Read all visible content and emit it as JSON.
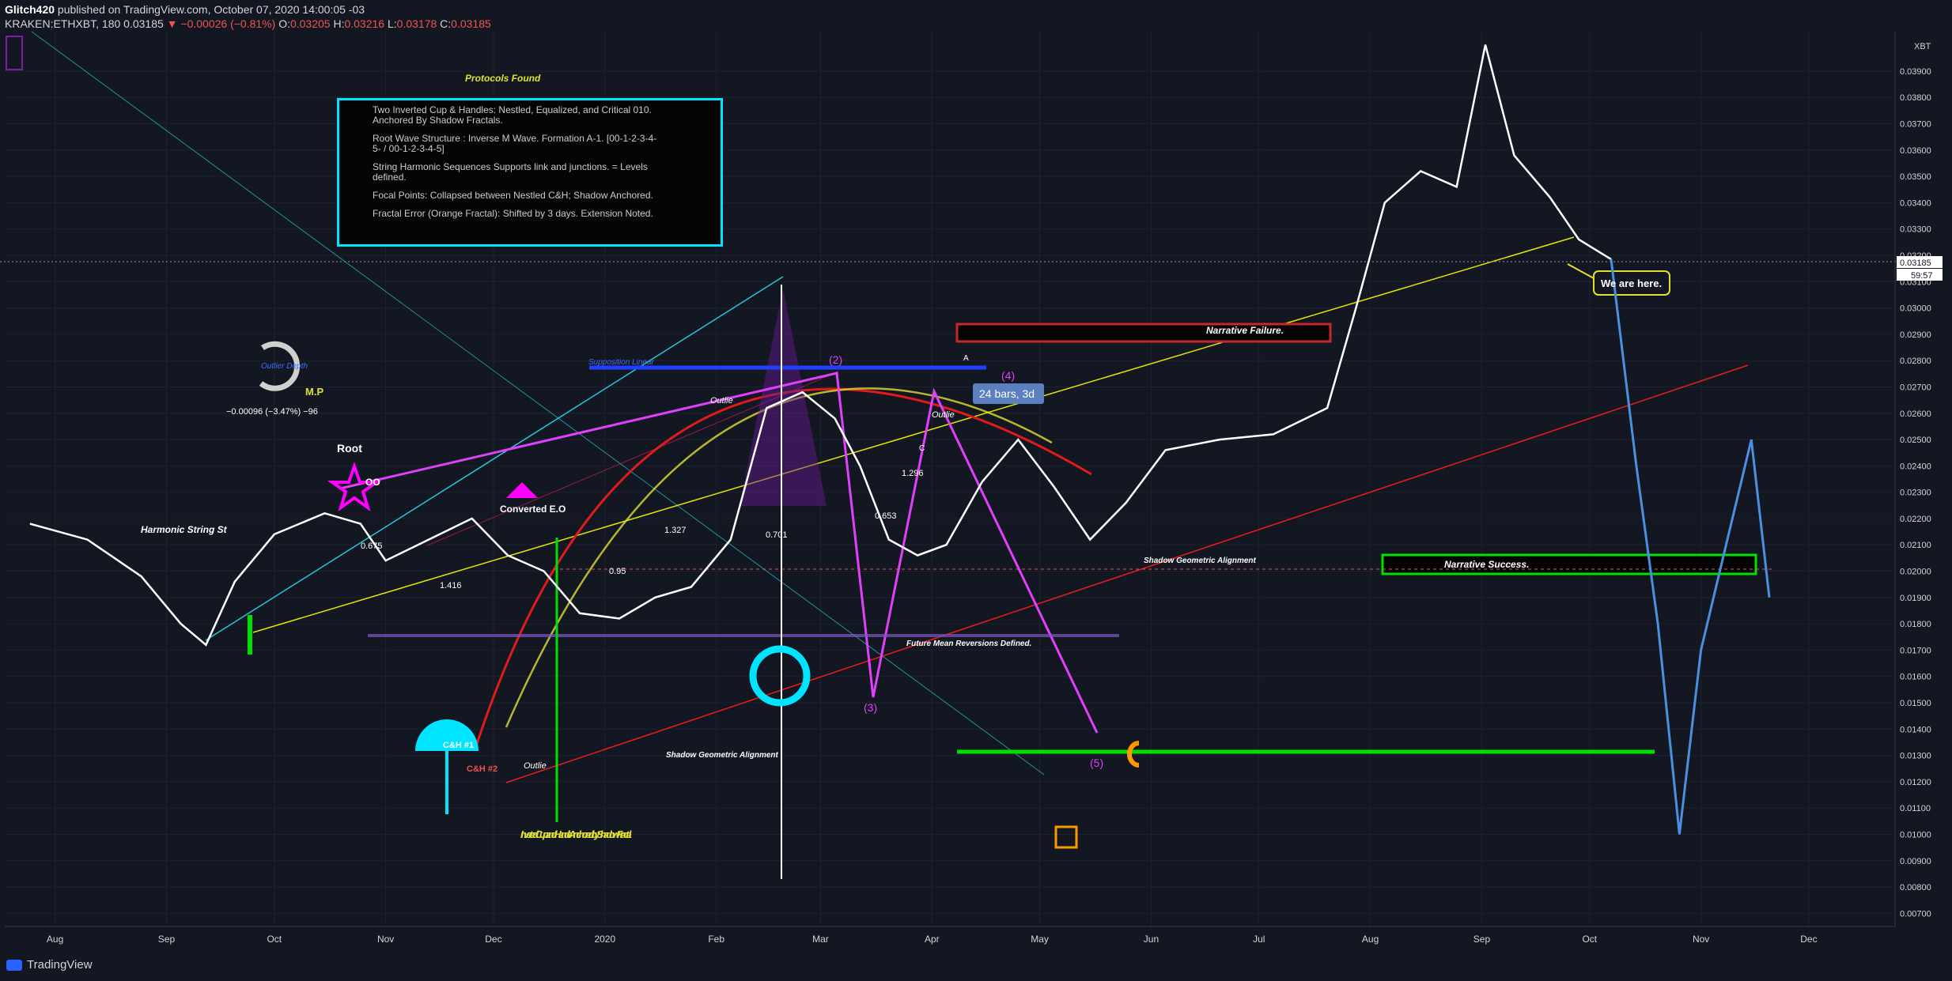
{
  "header": {
    "author": "Glitch420",
    "published": "published on TradingView.com, October 07, 2020 14:00:05 -03",
    "symbol": "KRAKEN:ETHXBT, 180",
    "last": "0.03185",
    "change": "−0.00026 (−0.81%)",
    "open_label": "O:",
    "open": "0.03205",
    "high_label": "H:",
    "high": "0.03216",
    "low_label": "L:",
    "low": "0.03178",
    "close_label": "C:",
    "close": "0.03185"
  },
  "footer": {
    "brand": "TradingView"
  },
  "infobox": {
    "title": "Protocols Found",
    "lines": [
      "Two Inverted Cup & Handles: Nestled, Equalized, and Critical 010. Anchored By Shadow Fractals.",
      "Root Wave Structure : Inverse M Wave. Formation A-1. [00-1-2-3-4-5- / 00-1-2-3-4-5]",
      "String Harmonic Sequences Supports link and junctions. = Levels defined.",
      "Focal Points: Collapsed between Nestled C&H; Shadow Anchored.",
      "Fractal Error (Orange Fractal): Shifted by 3 days. Extension Noted."
    ]
  },
  "annotations": {
    "narrative_failure": "Narrative Failure.",
    "narrative_success": "Narrative Success.",
    "we_are_here": "We are here.",
    "bars_label": "24 bars, 3d",
    "shadow_alignment_upper": "Shadow Geometric Alignment",
    "shadow_alignment_lower": "Shadow Geometric Alignment",
    "future_mean": "Future Mean Reversions Defined.",
    "supposition": "Supposition Linear",
    "outlier_depth": "Outlier Depth",
    "outlier_change": "−0.00096 (−3.47%) −96",
    "mp": "M.P",
    "root": "Root",
    "oo": "OO",
    "harmonic": "Harmonic String St",
    "converted": "Converted E.O",
    "inverted_cup": "Inverted Cup and Handle Anchored by Shadow Fractal",
    "ch1": "C&H #1",
    "ch2": "C&H #2",
    "wave2": "(2)",
    "wave3": "(3)",
    "wave4": "(4)",
    "wave5": "(5)",
    "fib_0675": "0.675",
    "fib_0701": "0.701",
    "fib_0653": "0.653",
    "fib_095": "0.95",
    "fib_1296": "1.296",
    "fib_1416": "1.416",
    "fib_1327": "1.327",
    "outlier_a": "Outlie",
    "outlier_b": "Outlie",
    "outlier_c": "Outlie",
    "label_A": "A",
    "label_C": "C"
  },
  "price_scale": {
    "currency": "XBT",
    "current_price": "0.03185",
    "countdown": "59:57"
  },
  "chart_data": {
    "type": "line",
    "series": [],
    "y_ticks": [
      "0.03900",
      "0.03800",
      "0.03700",
      "0.03600",
      "0.03500",
      "0.03400",
      "0.03300",
      "0.03200",
      "0.03100",
      "0.03000",
      "0.02900",
      "0.02800",
      "0.02700",
      "0.02600",
      "0.02500",
      "0.02400",
      "0.02300",
      "0.02200",
      "0.02100",
      "0.02000",
      "0.01900",
      "0.01800",
      "0.01700",
      "0.01600",
      "0.01500",
      "0.01400",
      "0.01300",
      "0.01200",
      "0.01100",
      "0.01000",
      "0.00900",
      "0.00800",
      "0.00700"
    ],
    "x_ticks": [
      "Aug",
      "Sep",
      "Oct",
      "Nov",
      "Dec",
      "2020",
      "Feb",
      "Mar",
      "Apr",
      "May",
      "Jun",
      "Jul",
      "Aug",
      "Sep",
      "Oct",
      "Nov",
      "Dec"
    ],
    "ylim": [
      0.0065,
      0.0405
    ],
    "price_path": [
      [
        "2019-07-25",
        0.0218
      ],
      [
        "2019-08-10",
        0.0212
      ],
      [
        "2019-08-25",
        0.0198
      ],
      [
        "2019-09-05",
        0.018
      ],
      [
        "2019-09-12",
        0.0172
      ],
      [
        "2019-09-20",
        0.0196
      ],
      [
        "2019-10-01",
        0.0214
      ],
      [
        "2019-10-15",
        0.0222
      ],
      [
        "2019-10-25",
        0.0218
      ],
      [
        "2019-11-01",
        0.0204
      ],
      [
        "2019-11-10",
        0.021
      ],
      [
        "2019-11-25",
        0.022
      ],
      [
        "2019-12-05",
        0.0206
      ],
      [
        "2019-12-15",
        0.02
      ],
      [
        "2019-12-25",
        0.0184
      ],
      [
        "2020-01-05",
        0.0182
      ],
      [
        "2020-01-15",
        0.019
      ],
      [
        "2020-01-25",
        0.0194
      ],
      [
        "2020-02-05",
        0.0212
      ],
      [
        "2020-02-15",
        0.0262
      ],
      [
        "2020-02-25",
        0.0268
      ],
      [
        "2020-03-05",
        0.0258
      ],
      [
        "2020-03-12",
        0.024
      ],
      [
        "2020-03-20",
        0.0212
      ],
      [
        "2020-03-28",
        0.0206
      ],
      [
        "2020-04-05",
        0.021
      ],
      [
        "2020-04-15",
        0.0234
      ],
      [
        "2020-04-25",
        0.025
      ],
      [
        "2020-05-05",
        0.0232
      ],
      [
        "2020-05-15",
        0.0212
      ],
      [
        "2020-05-25",
        0.0226
      ],
      [
        "2020-06-05",
        0.0246
      ],
      [
        "2020-06-20",
        0.025
      ],
      [
        "2020-07-05",
        0.0252
      ],
      [
        "2020-07-20",
        0.0262
      ],
      [
        "2020-07-28",
        0.03
      ],
      [
        "2020-08-05",
        0.034
      ],
      [
        "2020-08-15",
        0.0352
      ],
      [
        "2020-08-25",
        0.0346
      ],
      [
        "2020-09-02",
        0.04
      ],
      [
        "2020-09-10",
        0.0358
      ],
      [
        "2020-09-20",
        0.0342
      ],
      [
        "2020-09-28",
        0.0326
      ],
      [
        "2020-10-07",
        0.03185
      ]
    ],
    "projection_path": [
      [
        "2020-10-07",
        0.03185
      ],
      [
        "2020-10-14",
        0.024
      ],
      [
        "2020-10-20",
        0.018
      ],
      [
        "2020-10-26",
        0.01
      ],
      [
        "2020-11-01",
        0.017
      ],
      [
        "2020-11-08",
        0.021
      ],
      [
        "2020-11-15",
        0.025
      ],
      [
        "2020-11-20",
        0.019
      ]
    ],
    "horizontal_levels": [
      0.0277,
      0.02,
      0.013
    ],
    "grid": true
  }
}
